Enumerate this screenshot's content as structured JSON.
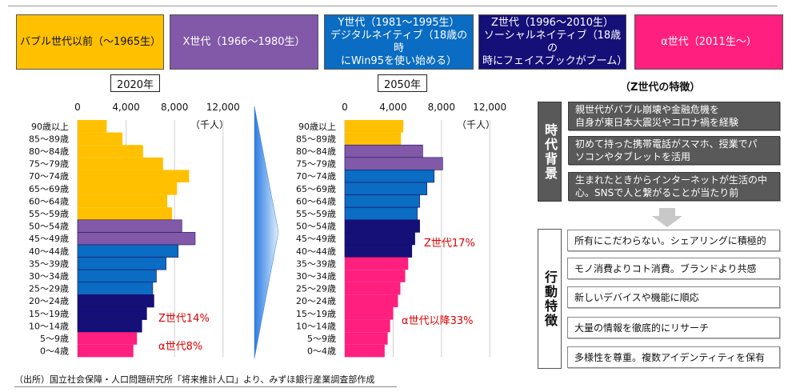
{
  "header": {
    "generations": [
      {
        "label": "バブル世代以前（〜1965生）",
        "color": "#FFC000",
        "text_color": "#111111"
      },
      {
        "label": "X世代（1966〜1980生）",
        "color": "#8159A8",
        "text_color": "#FFFFFF"
      },
      {
        "label": "Y世代（1981〜1995生）\nデジタルネイティブ（18歳の時\nにWin95を使い始める）",
        "color": "#0A6CC2",
        "text_color": "#FFFFFF"
      },
      {
        "label": "Z世代（1996〜2010生）\nソーシャルネイティブ（18歳の\n時にフェイスブックがブーム）",
        "color": "#150F78",
        "text_color": "#FFFFFF"
      },
      {
        "label": "α世代（2011生〜）",
        "color": "#FF1F7E",
        "text_color": "#FFFFFF"
      }
    ]
  },
  "chart_data": [
    {
      "type": "bar",
      "orientation": "horizontal",
      "title": "2020年",
      "unit_label": "（千人）",
      "xlim": [
        0,
        12000
      ],
      "xticks": [
        "0",
        "4,000",
        "8,000",
        "12,000"
      ],
      "xtick_values": [
        0,
        4000,
        8000,
        12000
      ],
      "grid": true,
      "categories": [
        "90歳以上",
        "85〜89歳",
        "80〜84歳",
        "75〜79歳",
        "70〜74歳",
        "65〜69歳",
        "60〜64歳",
        "55〜59歳",
        "50〜54歳",
        "45〜49歳",
        "40〜44歳",
        "35〜39歳",
        "30〜34歳",
        "25〜29歳",
        "20〜24歳",
        "15〜19歳",
        "10〜14歳",
        "5〜9歳",
        "0〜4歳"
      ],
      "values": [
        2400,
        3700,
        5400,
        7050,
        9200,
        8200,
        7400,
        7800,
        8600,
        9700,
        8300,
        7300,
        6500,
        6200,
        6300,
        5700,
        5300,
        4900,
        4600
      ],
      "generation": [
        "bubble",
        "bubble",
        "bubble",
        "bubble",
        "bubble",
        "bubble",
        "bubble",
        "bubble",
        "x",
        "x",
        "y",
        "y",
        "y",
        "y",
        "z",
        "z",
        "z",
        "alpha",
        "alpha"
      ],
      "annotations": [
        {
          "text": "Z世代14%",
          "color": "#E00000",
          "near_category": "15〜19歳"
        },
        {
          "text": "α世代8%",
          "color": "#E00000",
          "near_category": "5〜9歳"
        }
      ]
    },
    {
      "type": "bar",
      "orientation": "horizontal",
      "title": "2050年",
      "unit_label": "（千人）",
      "xlim": [
        0,
        12000
      ],
      "xticks": [
        "0",
        "4,000",
        "8,000",
        "12,000"
      ],
      "xtick_values": [
        0,
        4000,
        8000,
        12000
      ],
      "grid": true,
      "categories": [
        "90歳以上",
        "85〜89歳",
        "80〜84歳",
        "75〜79歳",
        "70〜74歳",
        "65〜69歳",
        "60〜64歳",
        "55〜59歳",
        "50〜54歳",
        "45〜49歳",
        "40〜44歳",
        "35〜39歳",
        "30〜34歳",
        "25〜29歳",
        "20〜24歳",
        "15〜19歳",
        "10〜14歳",
        "5〜9歳",
        "0〜4歳"
      ],
      "values": [
        4850,
        4650,
        6450,
        8100,
        7400,
        6800,
        6200,
        6000,
        6200,
        5800,
        5550,
        5250,
        5000,
        4600,
        4400,
        4000,
        3750,
        3550,
        3300
      ],
      "generation": [
        "bubble",
        "bubble",
        "x",
        "x",
        "y",
        "y",
        "y",
        "y",
        "z",
        "z",
        "z",
        "alpha",
        "alpha",
        "alpha",
        "alpha",
        "alpha",
        "alpha",
        "alpha",
        "alpha"
      ],
      "annotations": [
        {
          "text": "Z世代17%",
          "color": "#E00000",
          "near_category": "45〜49歳"
        },
        {
          "text": "α世代以降33%",
          "color": "#E00000",
          "near_category": "15〜19歳"
        }
      ]
    }
  ],
  "generation_colors": {
    "bubble": "#FFC000",
    "x": "#8159A8",
    "y": "#0A6CC2",
    "z": "#150F78",
    "alpha": "#FF1F7E"
  },
  "panel": {
    "title": "（Z世代の特徴）",
    "background_label": "時代背景",
    "background_items": [
      "親世代がバブル崩壊や金融危機を\n自身が東日本大震災やコロナ禍を経験",
      "初めて持った携帯電話がスマホ、授業でパ\nソコンやタブレットを活用",
      "生まれたときからインターネットが生活の中\n心。SNSで人と繋がることが当たり前"
    ],
    "behavior_label": "行動特徴",
    "behavior_items": [
      "所有にこだわらない。シェアリングに積極的",
      "モノ消費よりコト消費。ブランドより共感",
      "新しいデバイスや機能に順応",
      "大量の情報を徹底的にリサーチ",
      "多様性を尊重。複数アイデンティティを保有"
    ]
  },
  "source": "（出所）国立社会保障・人口問題研究所「将来推計人口」より、みずほ銀行産業調査部作成"
}
